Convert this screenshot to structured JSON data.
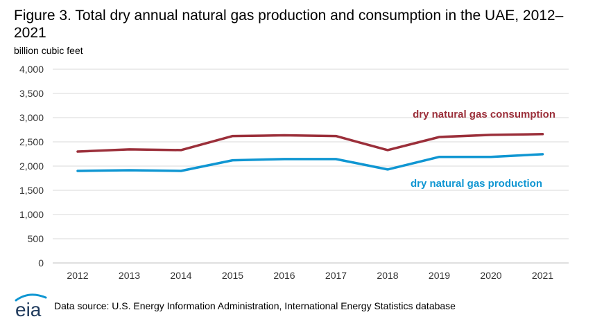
{
  "chart_data": {
    "type": "line",
    "title": "Figure 3. Total dry annual natural gas production and consumption in the UAE, 2012–2021",
    "ylabel": "billion cubic feet",
    "xlabel": "",
    "categories": [
      "2012",
      "2013",
      "2014",
      "2015",
      "2016",
      "2017",
      "2018",
      "2019",
      "2020",
      "2021"
    ],
    "ylim": [
      0,
      4000
    ],
    "yticks": [
      0,
      500,
      1000,
      1500,
      2000,
      2500,
      3000,
      3500,
      4000
    ],
    "ytick_labels": [
      "0",
      "500",
      "1,000",
      "1,500",
      "2,000",
      "2,500",
      "3,000",
      "3,500",
      "4,000"
    ],
    "grid": true,
    "series": [
      {
        "name": "dry natural gas consumption",
        "color": "#9b2f3a",
        "values": [
          2300,
          2345,
          2330,
          2620,
          2635,
          2620,
          2330,
          2600,
          2645,
          2660
        ]
      },
      {
        "name": "dry natural gas production",
        "color": "#0f96d2",
        "values": [
          1900,
          1915,
          1900,
          2120,
          2145,
          2145,
          1930,
          2190,
          2190,
          2245
        ]
      }
    ]
  },
  "footer": {
    "logo_text": "eia",
    "source": "Data source: U.S. Energy Information Administration, International Energy Statistics database"
  }
}
